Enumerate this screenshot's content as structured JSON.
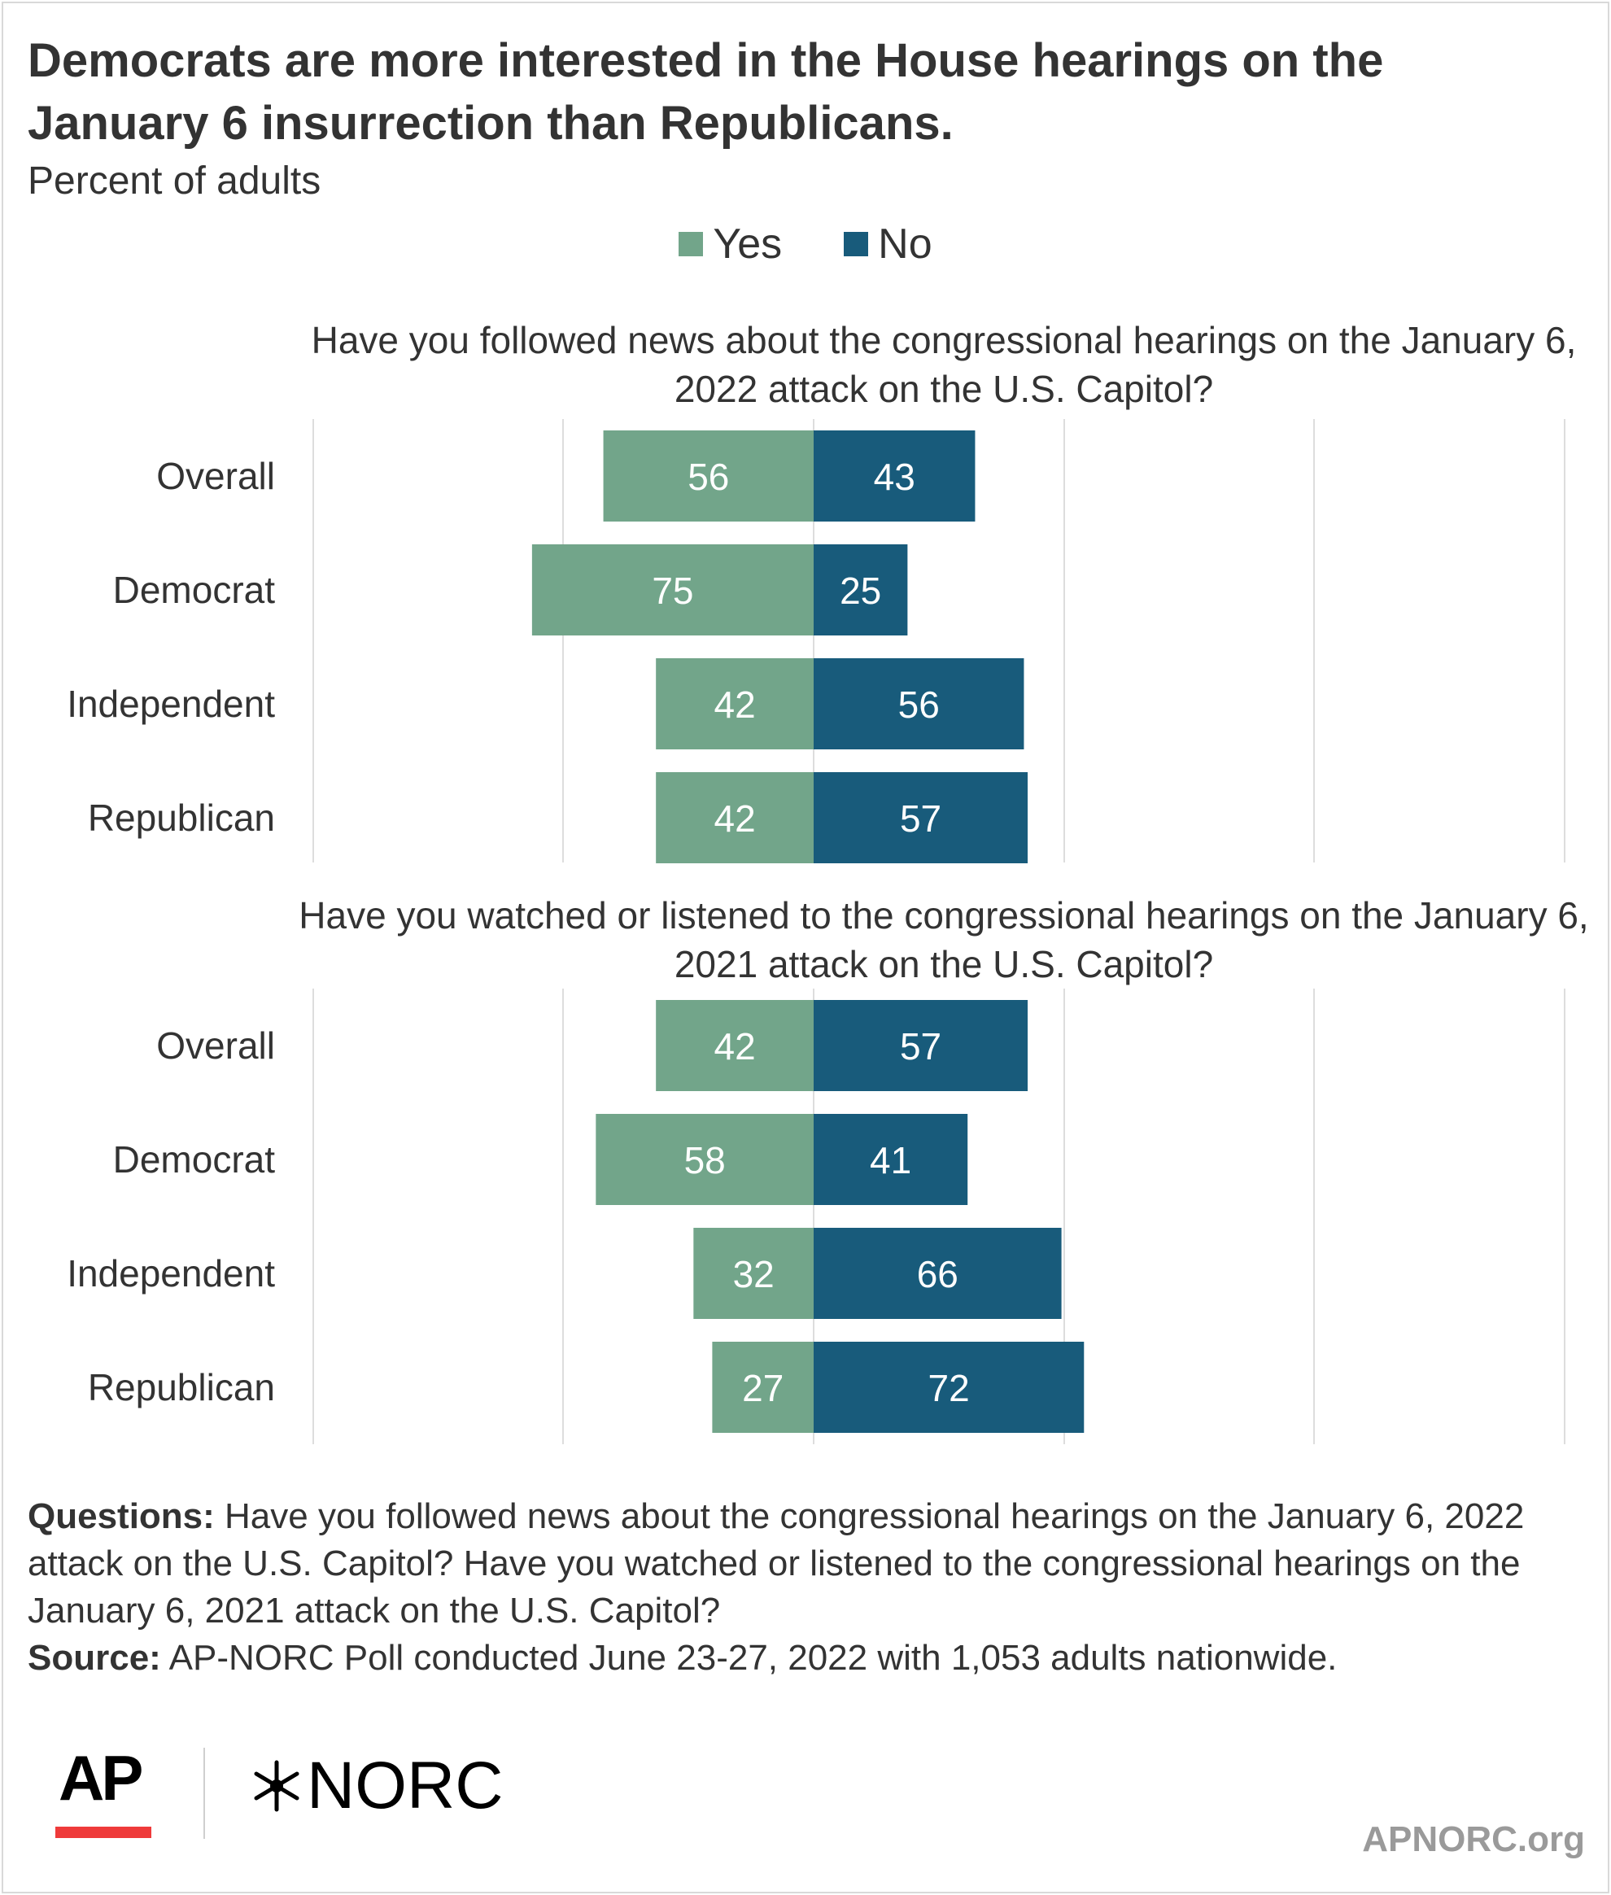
{
  "title": "Democrats are more interested in the House hearings on the January 6 insurrection than Republicans.",
  "subtitle": "Percent of adults",
  "legend": {
    "yes": "Yes",
    "no": "No"
  },
  "colors": {
    "yes": "#72a58a",
    "no": "#185b7b",
    "grid": "#dddddd",
    "label_text": "#ffffff"
  },
  "chart_data": [
    {
      "type": "bar",
      "title": "Have you followed news about the congressional hearings on the January 6, 2022 attack on the U.S. Capitol?",
      "categories": [
        "Overall",
        "Democrat",
        "Independent",
        "Republican"
      ],
      "series": [
        {
          "name": "Yes",
          "values": [
            56,
            75,
            42,
            42
          ]
        },
        {
          "name": "No",
          "values": [
            43,
            25,
            56,
            57
          ]
        }
      ],
      "grid": true
    },
    {
      "type": "bar",
      "title": "Have you watched or listened to the congressional hearings on the January 6, 2021 attack on the U.S. Capitol?",
      "categories": [
        "Overall",
        "Democrat",
        "Independent",
        "Republican"
      ],
      "series": [
        {
          "name": "Yes",
          "values": [
            42,
            58,
            32,
            27
          ]
        },
        {
          "name": "No",
          "values": [
            57,
            41,
            66,
            72
          ]
        }
      ],
      "grid": true
    }
  ],
  "notes": {
    "questions_label": "Questions:",
    "questions_text": " Have you followed news about the congressional hearings on the January 6, 2022 attack on the U.S. Capitol? Have you watched or listened to the congressional hearings on the January 6, 2021 attack on the U.S. Capitol?",
    "source_label": "Source:",
    "source_text": " AP-NORC Poll conducted June 23-27, 2022 with 1,053 adults nationwide."
  },
  "logos": {
    "ap": "AP",
    "norc": "NORC"
  },
  "site": "APNORC.org"
}
